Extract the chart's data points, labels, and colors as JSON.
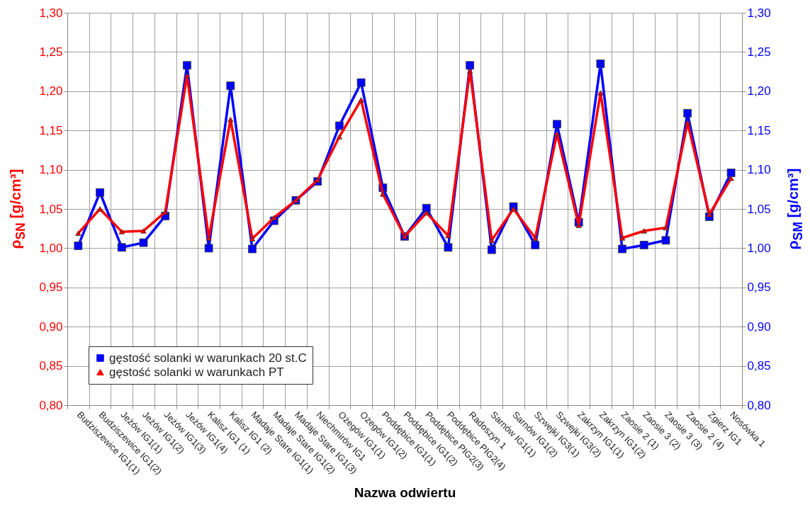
{
  "chart_data": {
    "type": "line",
    "xlabel": "Nazwa odwiertu",
    "ylabel": "ρ$_{SN}$ [g/cm³]",
    "y2label": "ρ$_{SM}$ [g/cm³]",
    "categories": [
      "Budziszewice IG1(1)",
      "Budziszewice IG1(2)",
      "Jeżów IG1(1)",
      "Jeżów IG1(2)",
      "Jeżów IG1(3)",
      "Jeżów IG1(4)",
      "Kalisz IG1 (1)",
      "Kalisz IG1 (2)",
      "Madaje Stare IG1(1)",
      "Madaje Stare IG1(2)",
      "Madaje Stare IG1(3)",
      "Niechmirów IG1",
      "Ożegów IG1(1)",
      "Ożegów IG1(2)",
      "Poddębice IG1(1)",
      "Poddębice IG1(2)",
      "Poddębice PIG2(3)",
      "Poddębice PIG2(4)",
      "Radoszyn 1",
      "Sarnów IG1(1)",
      "Sarnów IG1(2)",
      "Szwejki IG3(1)",
      "Szwejki IG3(2)",
      "Zakrzyn IG1(1)",
      "Zakrzyn IG1(2)",
      "Zaosie 2 (1)",
      "Zaosie 3 (2)",
      "Zaosie 3 (3)",
      "Zaosie 2 (4)",
      "Zgierz IG1",
      "Nosówka 1"
    ],
    "series": [
      {
        "name": "gęstość solanki w warunkach 20 st.C",
        "color": "#0000ff",
        "axis": "y2",
        "marker": "square",
        "values": [
          1.003,
          1.071,
          1.001,
          1.007,
          1.041,
          1.233,
          1.0,
          1.207,
          0.999,
          1.035,
          1.061,
          1.085,
          1.156,
          1.211,
          1.077,
          1.015,
          1.051,
          1.001,
          1.233,
          0.998,
          1.053,
          1.004,
          1.158,
          1.033,
          1.235,
          0.999,
          1.004,
          1.01,
          1.172,
          1.04,
          1.096
        ]
      },
      {
        "name": "gęstość solanki w warunkach PT",
        "color": "#ff0000",
        "marker": "triangle",
        "values": [
          1.019,
          1.05,
          1.021,
          1.022,
          1.046,
          1.22,
          1.013,
          1.164,
          1.012,
          1.039,
          1.061,
          1.087,
          1.142,
          1.189,
          1.069,
          1.015,
          1.045,
          1.016,
          1.226,
          1.01,
          1.05,
          1.013,
          1.146,
          1.029,
          1.198,
          1.013,
          1.022,
          1.026,
          1.16,
          1.043,
          1.089
        ]
      }
    ],
    "ylim": [
      0.8,
      1.3
    ],
    "yticks": [
      {
        "value": 0.8,
        "label": "0,80"
      },
      {
        "value": 0.85,
        "label": "0,85"
      },
      {
        "value": 0.9,
        "label": "0,90"
      },
      {
        "value": 0.95,
        "label": "0,95"
      },
      {
        "value": 1.0,
        "label": "1,00"
      },
      {
        "value": 1.05,
        "label": "1,05"
      },
      {
        "value": 1.1,
        "label": "1,10"
      },
      {
        "value": 1.15,
        "label": "1,15"
      },
      {
        "value": 1.2,
        "label": "1,20"
      },
      {
        "value": 1.25,
        "label": "1,25"
      },
      {
        "value": 1.3,
        "label": "1,30"
      }
    ],
    "y2lim": [
      0.8,
      1.3
    ],
    "y2ticks": [
      {
        "value": 0.8,
        "label": "0,80"
      },
      {
        "value": 0.85,
        "label": "0,85"
      },
      {
        "value": 0.9,
        "label": "0,90"
      },
      {
        "value": 0.95,
        "label": "0,95"
      },
      {
        "value": 1.0,
        "label": "1,00"
      },
      {
        "value": 1.05,
        "label": "1,05"
      },
      {
        "value": 1.1,
        "label": "1,10"
      },
      {
        "value": 1.15,
        "label": "1,15"
      },
      {
        "value": 1.2,
        "label": "1,20"
      },
      {
        "value": 1.25,
        "label": "1,25"
      },
      {
        "value": 1.3,
        "label": "1,30"
      }
    ],
    "grid": true,
    "legend": "bottom left",
    "line_style": "solid"
  }
}
